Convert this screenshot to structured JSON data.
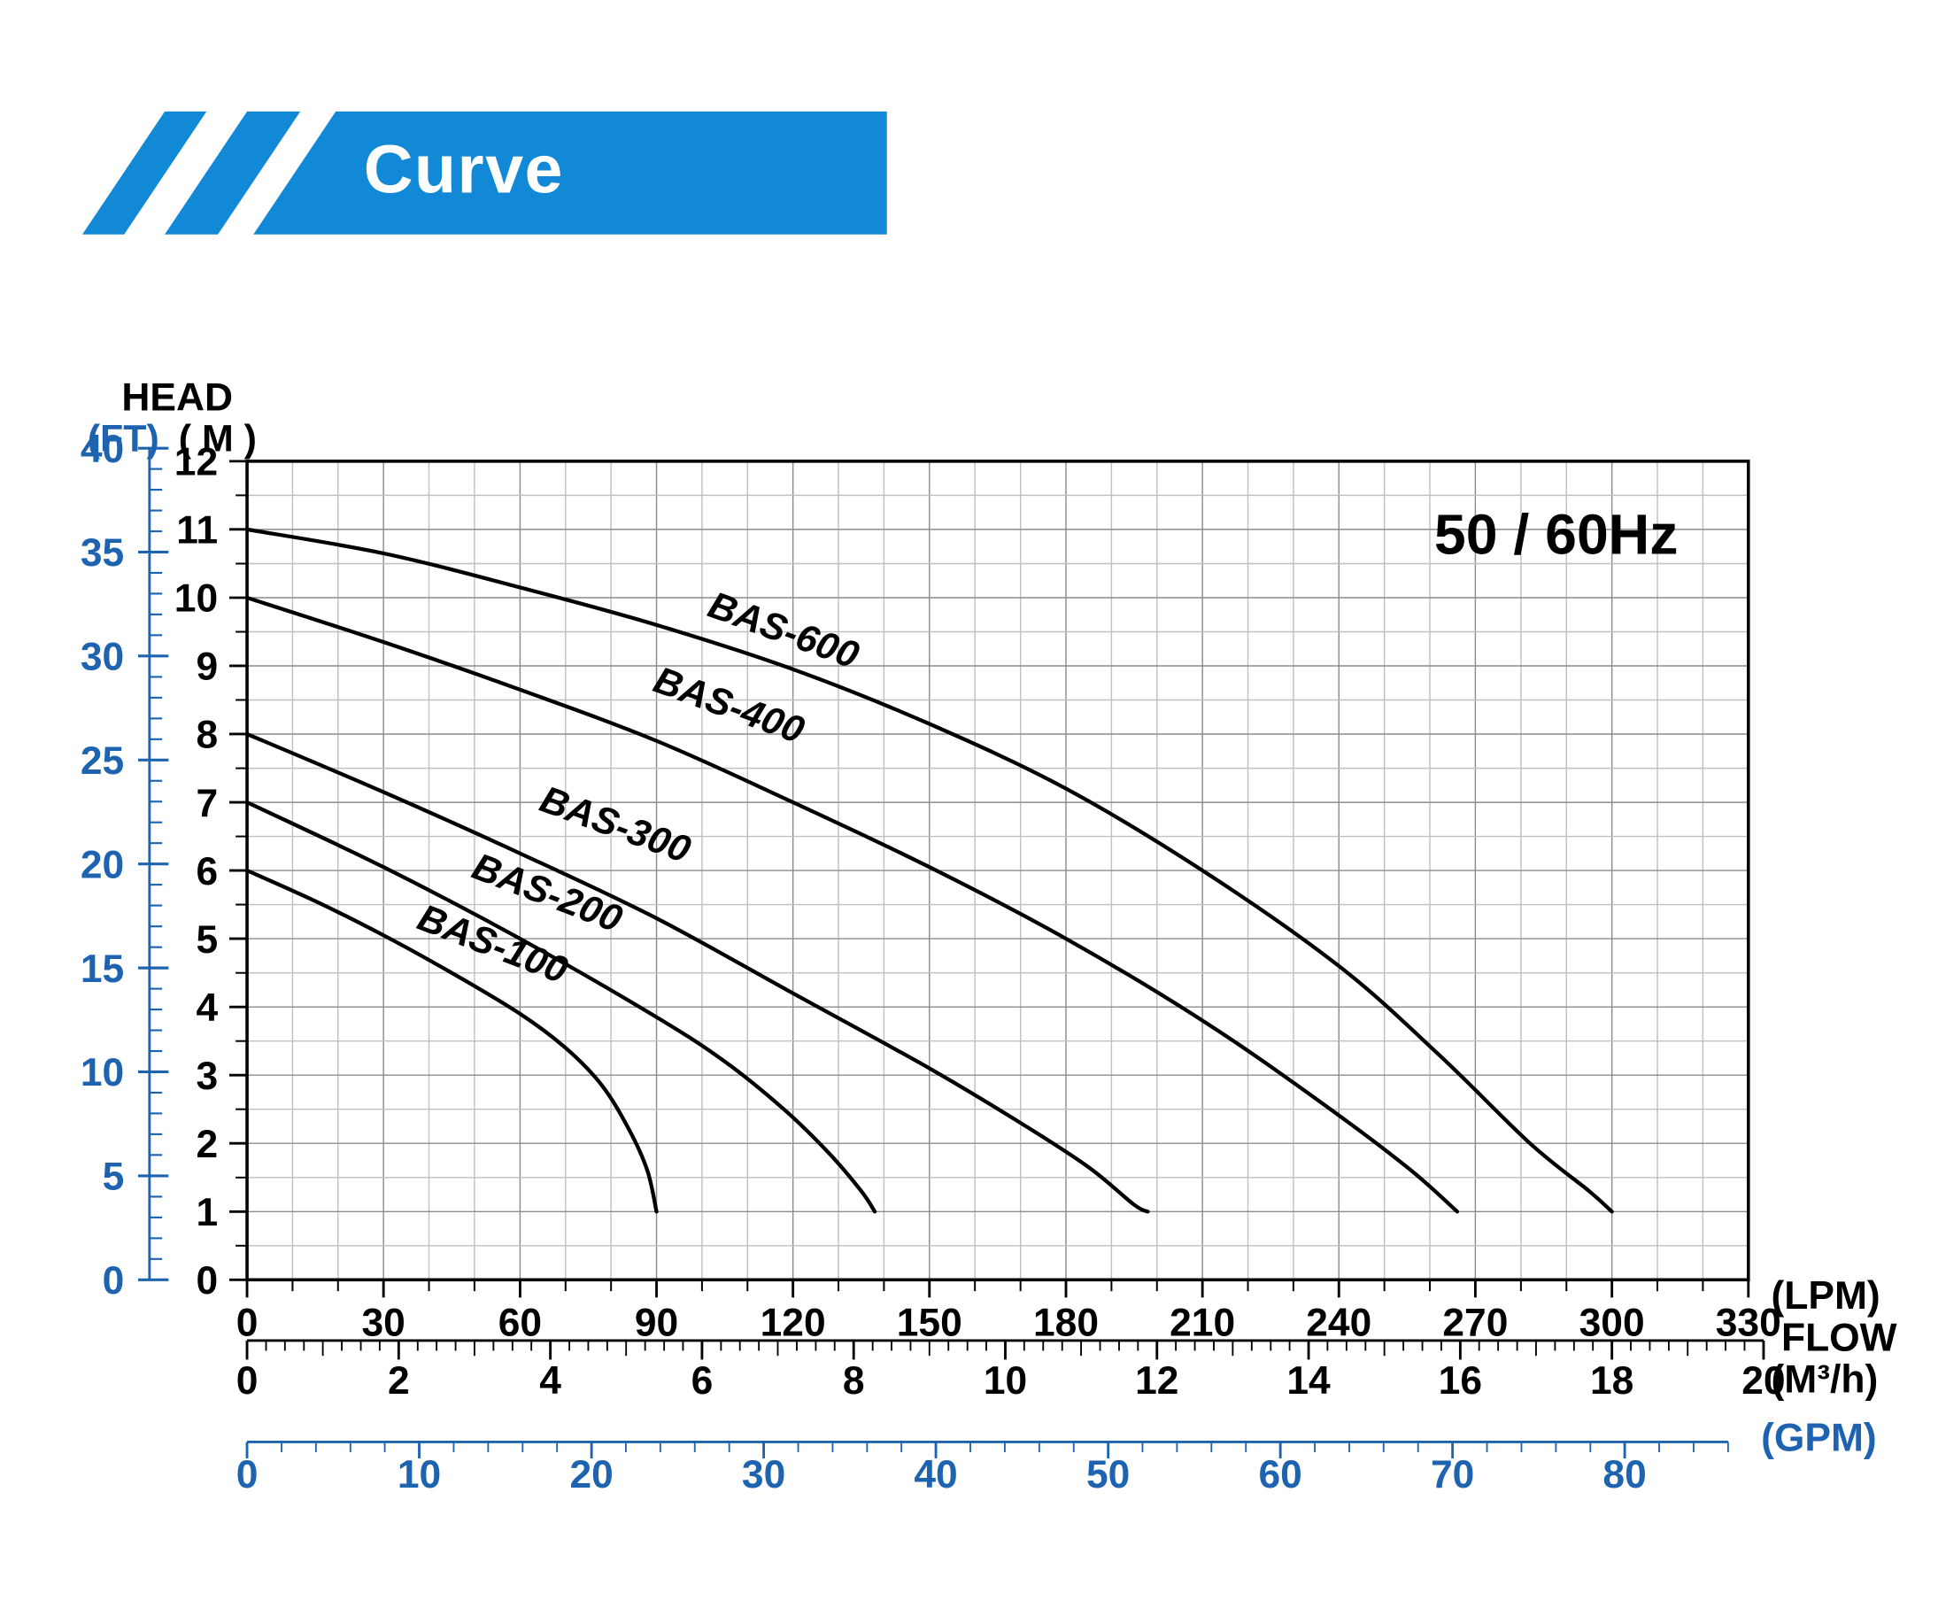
{
  "colors": {
    "banner_blue": "#1289d7",
    "axis_blue": "#1e63b0",
    "curve": "#000000",
    "grid_minor": "#c0c0c0",
    "grid_major": "#8c8c8c"
  },
  "chart_data": {
    "type": "line",
    "title": "Curve",
    "annotation": "50 / 60Hz",
    "x_label": "FLOW",
    "y_label": "HEAD",
    "grid": true,
    "legend_position": "labels-on-curves",
    "x_axes": [
      {
        "name": "LPM",
        "unit_label": "(LPM)",
        "min": 0,
        "max": 330,
        "label_step": 30,
        "minor_step": 10,
        "lpm_per_unit": 1,
        "labels": [
          0,
          30,
          60,
          90,
          120,
          150,
          180,
          210,
          240,
          270,
          300,
          330
        ]
      },
      {
        "name": "M3/h",
        "unit_label": "(M³/h)",
        "min": 0,
        "max": 20,
        "label_step": 2,
        "minor_step": 0.25,
        "lpm_per_unit": 16.6667,
        "labels": [
          0,
          2,
          4,
          6,
          8,
          10,
          12,
          14,
          16,
          18,
          20
        ]
      },
      {
        "name": "GPM",
        "unit_label": "(GPM)",
        "min": 0,
        "max": 86,
        "label_step": 10,
        "minor_step": 2,
        "lpm_per_unit": 3.78541,
        "labels": [
          0,
          10,
          20,
          30,
          40,
          50,
          60,
          70,
          80
        ]
      }
    ],
    "y_axes": [
      {
        "name": "M",
        "unit_label": "( M )",
        "min": 0,
        "max": 12,
        "label_step": 1,
        "minor_step": 0.5,
        "m_per_unit": 1,
        "labels": [
          0,
          1,
          2,
          3,
          4,
          5,
          6,
          7,
          8,
          9,
          10,
          11,
          12
        ]
      },
      {
        "name": "FT",
        "unit_label": "(FT)",
        "min": 0,
        "max": 40,
        "label_step": 5,
        "minor_step": 1,
        "m_per_unit": 0.3048,
        "labels": [
          0,
          5,
          10,
          15,
          20,
          25,
          30,
          35,
          40
        ]
      }
    ],
    "series": [
      {
        "name": "BAS-100",
        "points": [
          [
            0,
            6.0
          ],
          [
            15,
            5.55
          ],
          [
            30,
            5.05
          ],
          [
            45,
            4.5
          ],
          [
            60,
            3.9
          ],
          [
            70,
            3.4
          ],
          [
            78,
            2.85
          ],
          [
            84,
            2.2
          ],
          [
            88,
            1.6
          ],
          [
            90,
            1.0
          ]
        ],
        "label_at": {
          "x": 53,
          "y": 4.75,
          "angle": 21
        }
      },
      {
        "name": "BAS-200",
        "points": [
          [
            0,
            7.0
          ],
          [
            30,
            6.05
          ],
          [
            60,
            5.0
          ],
          [
            90,
            3.85
          ],
          [
            105,
            3.2
          ],
          [
            118,
            2.5
          ],
          [
            128,
            1.85
          ],
          [
            135,
            1.3
          ],
          [
            138,
            1.0
          ]
        ],
        "label_at": {
          "x": 65,
          "y": 5.5,
          "angle": 21
        }
      },
      {
        "name": "BAS-300",
        "points": [
          [
            0,
            8.0
          ],
          [
            30,
            7.15
          ],
          [
            60,
            6.25
          ],
          [
            90,
            5.3
          ],
          [
            120,
            4.2
          ],
          [
            150,
            3.1
          ],
          [
            170,
            2.3
          ],
          [
            185,
            1.65
          ],
          [
            195,
            1.1
          ],
          [
            198,
            1.0
          ]
        ],
        "label_at": {
          "x": 80,
          "y": 6.5,
          "angle": 20
        }
      },
      {
        "name": "BAS-400",
        "points": [
          [
            0,
            10.0
          ],
          [
            30,
            9.35
          ],
          [
            60,
            8.65
          ],
          [
            90,
            7.9
          ],
          [
            120,
            7.0
          ],
          [
            150,
            6.05
          ],
          [
            180,
            5.0
          ],
          [
            210,
            3.8
          ],
          [
            235,
            2.65
          ],
          [
            255,
            1.65
          ],
          [
            266,
            1.0
          ]
        ],
        "label_at": {
          "x": 105,
          "y": 8.25,
          "angle": 20
        }
      },
      {
        "name": "BAS-600",
        "points": [
          [
            0,
            11.0
          ],
          [
            30,
            10.65
          ],
          [
            60,
            10.15
          ],
          [
            90,
            9.6
          ],
          [
            120,
            8.95
          ],
          [
            150,
            8.15
          ],
          [
            180,
            7.2
          ],
          [
            210,
            6.0
          ],
          [
            240,
            4.6
          ],
          [
            262,
            3.3
          ],
          [
            282,
            2.0
          ],
          [
            295,
            1.3
          ],
          [
            300,
            1.0
          ]
        ],
        "label_at": {
          "x": 117,
          "y": 9.35,
          "angle": 20
        }
      }
    ]
  }
}
